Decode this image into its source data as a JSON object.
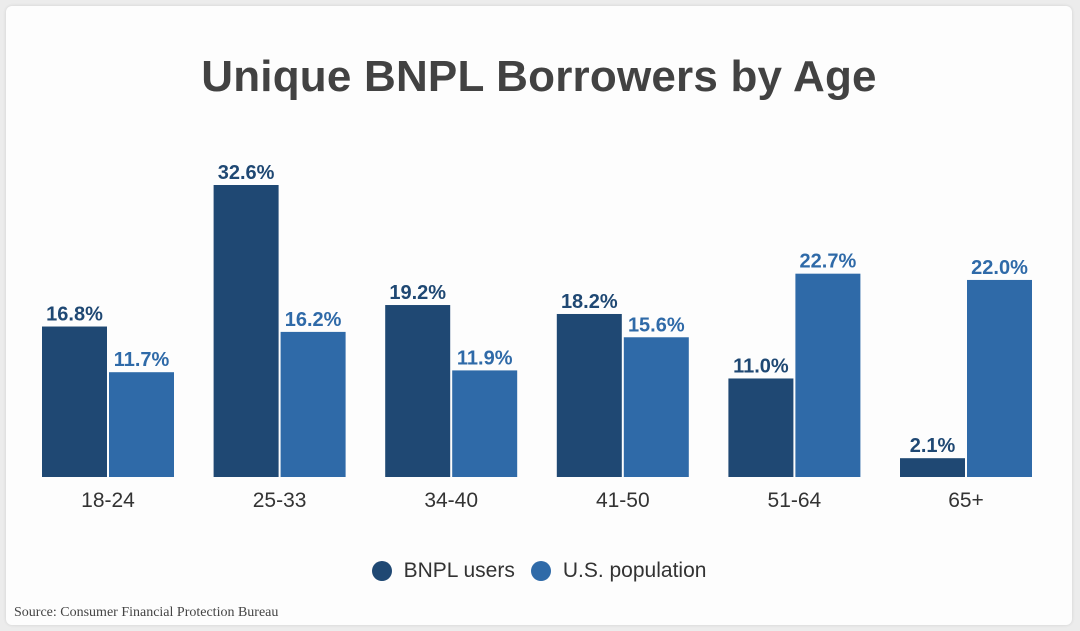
{
  "chart_data": {
    "type": "bar",
    "title": "Unique BNPL Borrowers by Age",
    "categories": [
      "18-24",
      "25-33",
      "34-40",
      "41-50",
      "51-64",
      "65+"
    ],
    "series": [
      {
        "name": "BNPL users",
        "values": [
          16.8,
          32.6,
          19.2,
          18.2,
          11.0,
          2.1
        ],
        "labels": [
          "16.8%",
          "32.6%",
          "19.2%",
          "18.2%",
          "11.0%",
          "2.1%"
        ],
        "color": "#1f4873",
        "label_color": "#1f4873"
      },
      {
        "name": "U.S. population",
        "values": [
          11.7,
          16.2,
          11.9,
          15.6,
          22.7,
          22.0
        ],
        "labels": [
          "11.7%",
          "16.2%",
          "11.9%",
          "15.6%",
          "22.7%",
          "22.0%"
        ],
        "color": "#2f6aa8",
        "label_color": "#2f6aa8"
      }
    ],
    "ylim": [
      0,
      32.6
    ],
    "grid": false,
    "legend_position": "bottom"
  },
  "source": "Source: Consumer Financial Protection Bureau"
}
